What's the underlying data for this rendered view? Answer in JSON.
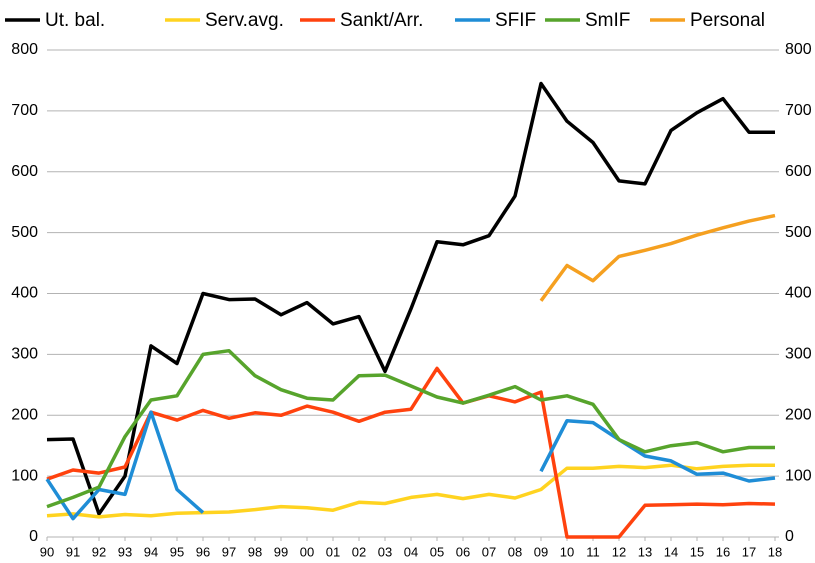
{
  "chart_data": {
    "type": "line",
    "categories": [
      "90",
      "91",
      "92",
      "93",
      "94",
      "95",
      "96",
      "97",
      "98",
      "99",
      "00",
      "01",
      "02",
      "03",
      "04",
      "05",
      "06",
      "07",
      "08",
      "09",
      "10",
      "11",
      "12",
      "13",
      "14",
      "15",
      "16",
      "17",
      "18"
    ],
    "series": [
      {
        "name": "Ut. bal.",
        "color": "#000000",
        "values": [
          160,
          161,
          38,
          100,
          314,
          285,
          400,
          390,
          391,
          365,
          385,
          350,
          362,
          272,
          375,
          485,
          480,
          495,
          560,
          745,
          683,
          648,
          585,
          580,
          668,
          697,
          720,
          665,
          665
        ]
      },
      {
        "name": "Serv.avg.",
        "color": "#ffd320",
        "values": [
          35,
          38,
          33,
          37,
          35,
          39,
          40,
          41,
          45,
          50,
          48,
          44,
          57,
          55,
          65,
          70,
          63,
          70,
          64,
          78,
          113,
          113,
          116,
          114,
          118,
          112,
          116,
          118,
          118
        ]
      },
      {
        "name": "Sankt/Arr.",
        "color": "#ff420e",
        "values": [
          95,
          110,
          105,
          115,
          205,
          192,
          208,
          195,
          204,
          200,
          215,
          205,
          190,
          205,
          210,
          277,
          220,
          232,
          222,
          238,
          0,
          0,
          0,
          52,
          53,
          54,
          53,
          55,
          54
        ]
      },
      {
        "name": "SFIF",
        "color": "#1f8dd6",
        "values": [
          95,
          30,
          78,
          70,
          205,
          78,
          40,
          null,
          null,
          null,
          null,
          null,
          null,
          null,
          null,
          null,
          null,
          null,
          null,
          108,
          191,
          188,
          160,
          133,
          125,
          103,
          105,
          92,
          97
        ]
      },
      {
        "name": "SmIF",
        "color": "#57a42c",
        "values": [
          50,
          65,
          82,
          165,
          225,
          232,
          300,
          306,
          265,
          242,
          228,
          225,
          265,
          266,
          248,
          230,
          220,
          233,
          247,
          225,
          232,
          218,
          160,
          140,
          150,
          155,
          140,
          147,
          147
        ]
      },
      {
        "name": "Personal",
        "color": "#f5a020",
        "values": [
          null,
          null,
          null,
          null,
          null,
          null,
          null,
          null,
          null,
          null,
          null,
          null,
          null,
          null,
          null,
          null,
          null,
          null,
          null,
          388,
          446,
          421,
          461,
          471,
          482,
          496,
          508,
          519,
          528
        ]
      }
    ],
    "ylim": [
      0,
      800
    ],
    "yticks": [
      0,
      100,
      200,
      300,
      400,
      500,
      600,
      700,
      800
    ],
    "y2lim": [
      0,
      800
    ],
    "y2ticks": [
      0,
      100,
      200,
      300,
      400,
      500,
      600,
      700,
      800
    ],
    "grid": true,
    "legend": "top"
  }
}
